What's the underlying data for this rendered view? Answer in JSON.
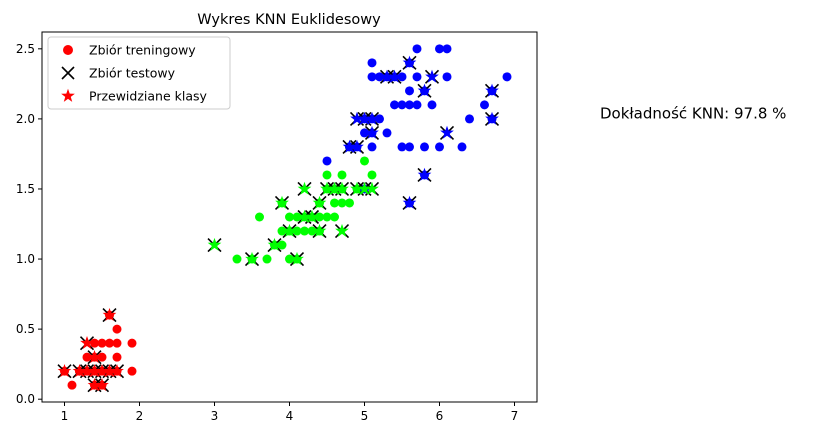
{
  "chart_data": {
    "type": "scatter",
    "title": "Wykres KNN Euklidesowy",
    "xlabel": "",
    "ylabel": "",
    "xlim": [
      0.7,
      7.3
    ],
    "ylim": [
      -0.02,
      2.62
    ],
    "xticks": [
      1,
      2,
      3,
      4,
      5,
      6,
      7
    ],
    "xtick_labels": [
      "1",
      "2",
      "3",
      "4",
      "5",
      "6",
      "7"
    ],
    "yticks": [
      0.0,
      0.5,
      1.0,
      1.5,
      2.0,
      2.5
    ],
    "ytick_labels": [
      "0.0",
      "0.5",
      "1.0",
      "1.5",
      "2.0",
      "2.5"
    ],
    "grid": false,
    "legend_position": "top-left",
    "legend": [
      {
        "label": "Zbiór treningowy",
        "marker": "circle",
        "color": "#ff0000"
      },
      {
        "label": "Zbiór testowy",
        "marker": "x",
        "color": "#000000"
      },
      {
        "label": "Przewidziane klasy",
        "marker": "star",
        "color": "#ff0000"
      }
    ],
    "class_colors": [
      "#ff0000",
      "#00ff00",
      "#0000ff"
    ],
    "training": [
      {
        "x": 1.1,
        "y": 0.1,
        "c": 0
      },
      {
        "x": 1.2,
        "y": 0.2,
        "c": 0
      },
      {
        "x": 1.3,
        "y": 0.2,
        "c": 0
      },
      {
        "x": 1.3,
        "y": 0.3,
        "c": 0
      },
      {
        "x": 1.4,
        "y": 0.2,
        "c": 0
      },
      {
        "x": 1.4,
        "y": 0.3,
        "c": 0
      },
      {
        "x": 1.4,
        "y": 0.1,
        "c": 0
      },
      {
        "x": 1.5,
        "y": 0.2,
        "c": 0
      },
      {
        "x": 1.5,
        "y": 0.3,
        "c": 0
      },
      {
        "x": 1.5,
        "y": 0.4,
        "c": 0
      },
      {
        "x": 1.5,
        "y": 0.1,
        "c": 0
      },
      {
        "x": 1.6,
        "y": 0.2,
        "c": 0
      },
      {
        "x": 1.6,
        "y": 0.4,
        "c": 0
      },
      {
        "x": 1.6,
        "y": 0.6,
        "c": 0
      },
      {
        "x": 1.7,
        "y": 0.2,
        "c": 0
      },
      {
        "x": 1.7,
        "y": 0.3,
        "c": 0
      },
      {
        "x": 1.7,
        "y": 0.4,
        "c": 0
      },
      {
        "x": 1.7,
        "y": 0.5,
        "c": 0
      },
      {
        "x": 1.9,
        "y": 0.2,
        "c": 0
      },
      {
        "x": 1.9,
        "y": 0.4,
        "c": 0
      },
      {
        "x": 1.2,
        "y": 0.2,
        "c": 0
      },
      {
        "x": 1.0,
        "y": 0.2,
        "c": 0
      },
      {
        "x": 1.4,
        "y": 0.4,
        "c": 0
      },
      {
        "x": 3.3,
        "y": 1.0,
        "c": 1
      },
      {
        "x": 3.5,
        "y": 1.0,
        "c": 1
      },
      {
        "x": 3.6,
        "y": 1.3,
        "c": 1
      },
      {
        "x": 3.7,
        "y": 1.0,
        "c": 1
      },
      {
        "x": 3.8,
        "y": 1.1,
        "c": 1
      },
      {
        "x": 3.9,
        "y": 1.1,
        "c": 1
      },
      {
        "x": 3.9,
        "y": 1.2,
        "c": 1
      },
      {
        "x": 3.9,
        "y": 1.4,
        "c": 1
      },
      {
        "x": 4.0,
        "y": 1.0,
        "c": 1
      },
      {
        "x": 4.0,
        "y": 1.2,
        "c": 1
      },
      {
        "x": 4.0,
        "y": 1.3,
        "c": 1
      },
      {
        "x": 4.1,
        "y": 1.0,
        "c": 1
      },
      {
        "x": 4.1,
        "y": 1.3,
        "c": 1
      },
      {
        "x": 4.2,
        "y": 1.2,
        "c": 1
      },
      {
        "x": 4.2,
        "y": 1.3,
        "c": 1
      },
      {
        "x": 4.3,
        "y": 1.3,
        "c": 1
      },
      {
        "x": 4.4,
        "y": 1.2,
        "c": 1
      },
      {
        "x": 4.4,
        "y": 1.3,
        "c": 1
      },
      {
        "x": 4.4,
        "y": 1.4,
        "c": 1
      },
      {
        "x": 4.5,
        "y": 1.3,
        "c": 1
      },
      {
        "x": 4.5,
        "y": 1.5,
        "c": 1
      },
      {
        "x": 4.5,
        "y": 1.6,
        "c": 1
      },
      {
        "x": 4.6,
        "y": 1.3,
        "c": 1
      },
      {
        "x": 4.6,
        "y": 1.4,
        "c": 1
      },
      {
        "x": 4.6,
        "y": 1.5,
        "c": 1
      },
      {
        "x": 4.7,
        "y": 1.4,
        "c": 1
      },
      {
        "x": 4.7,
        "y": 1.5,
        "c": 1
      },
      {
        "x": 4.7,
        "y": 1.6,
        "c": 1
      },
      {
        "x": 4.8,
        "y": 1.4,
        "c": 1
      },
      {
        "x": 4.8,
        "y": 1.8,
        "c": 1
      },
      {
        "x": 4.9,
        "y": 1.5,
        "c": 1
      },
      {
        "x": 5.0,
        "y": 1.7,
        "c": 1
      },
      {
        "x": 5.1,
        "y": 1.6,
        "c": 1
      },
      {
        "x": 4.1,
        "y": 1.2,
        "c": 1
      },
      {
        "x": 4.3,
        "y": 1.2,
        "c": 1
      },
      {
        "x": 4.5,
        "y": 1.7,
        "c": 2
      },
      {
        "x": 4.8,
        "y": 1.8,
        "c": 2
      },
      {
        "x": 4.9,
        "y": 1.8,
        "c": 2
      },
      {
        "x": 5.0,
        "y": 1.5,
        "c": 2
      },
      {
        "x": 5.0,
        "y": 1.9,
        "c": 2
      },
      {
        "x": 5.0,
        "y": 2.0,
        "c": 2
      },
      {
        "x": 5.1,
        "y": 1.8,
        "c": 2
      },
      {
        "x": 5.1,
        "y": 1.9,
        "c": 2
      },
      {
        "x": 5.1,
        "y": 2.0,
        "c": 2
      },
      {
        "x": 5.1,
        "y": 2.3,
        "c": 2
      },
      {
        "x": 5.1,
        "y": 2.4,
        "c": 2
      },
      {
        "x": 5.2,
        "y": 2.0,
        "c": 2
      },
      {
        "x": 5.2,
        "y": 2.3,
        "c": 2
      },
      {
        "x": 5.3,
        "y": 1.9,
        "c": 2
      },
      {
        "x": 5.3,
        "y": 2.3,
        "c": 2
      },
      {
        "x": 5.4,
        "y": 2.1,
        "c": 2
      },
      {
        "x": 5.4,
        "y": 2.3,
        "c": 2
      },
      {
        "x": 5.5,
        "y": 1.8,
        "c": 2
      },
      {
        "x": 5.5,
        "y": 2.1,
        "c": 2
      },
      {
        "x": 5.6,
        "y": 1.8,
        "c": 2
      },
      {
        "x": 5.6,
        "y": 2.1,
        "c": 2
      },
      {
        "x": 5.6,
        "y": 2.2,
        "c": 2
      },
      {
        "x": 5.6,
        "y": 2.4,
        "c": 2
      },
      {
        "x": 5.7,
        "y": 2.1,
        "c": 2
      },
      {
        "x": 5.7,
        "y": 2.3,
        "c": 2
      },
      {
        "x": 5.7,
        "y": 2.5,
        "c": 2
      },
      {
        "x": 5.8,
        "y": 1.8,
        "c": 2
      },
      {
        "x": 5.8,
        "y": 2.2,
        "c": 2
      },
      {
        "x": 5.9,
        "y": 2.1,
        "c": 2
      },
      {
        "x": 6.0,
        "y": 1.8,
        "c": 2
      },
      {
        "x": 6.0,
        "y": 2.5,
        "c": 2
      },
      {
        "x": 6.1,
        "y": 2.3,
        "c": 2
      },
      {
        "x": 6.1,
        "y": 2.5,
        "c": 2
      },
      {
        "x": 6.3,
        "y": 1.8,
        "c": 2
      },
      {
        "x": 6.4,
        "y": 2.0,
        "c": 2
      },
      {
        "x": 6.6,
        "y": 2.1,
        "c": 2
      },
      {
        "x": 6.7,
        "y": 2.0,
        "c": 2
      },
      {
        "x": 6.7,
        "y": 2.2,
        "c": 2
      },
      {
        "x": 6.9,
        "y": 2.3,
        "c": 2
      },
      {
        "x": 5.8,
        "y": 1.6,
        "c": 2
      },
      {
        "x": 5.6,
        "y": 1.4,
        "c": 2
      },
      {
        "x": 5.5,
        "y": 2.3,
        "c": 2
      }
    ],
    "test": [
      {
        "x": 1.0,
        "y": 0.2,
        "pred": 0
      },
      {
        "x": 1.2,
        "y": 0.2,
        "pred": 0
      },
      {
        "x": 1.3,
        "y": 0.4,
        "pred": 0
      },
      {
        "x": 1.3,
        "y": 0.2,
        "pred": 0
      },
      {
        "x": 1.4,
        "y": 0.2,
        "pred": 0
      },
      {
        "x": 1.4,
        "y": 0.1,
        "pred": 0
      },
      {
        "x": 1.5,
        "y": 0.2,
        "pred": 0
      },
      {
        "x": 1.5,
        "y": 0.1,
        "pred": 0
      },
      {
        "x": 1.6,
        "y": 0.2,
        "pred": 0
      },
      {
        "x": 1.6,
        "y": 0.6,
        "pred": 0
      },
      {
        "x": 1.7,
        "y": 0.2,
        "pred": 0
      },
      {
        "x": 1.4,
        "y": 0.3,
        "pred": 0
      },
      {
        "x": 3.0,
        "y": 1.1,
        "pred": 1
      },
      {
        "x": 3.5,
        "y": 1.0,
        "pred": 1
      },
      {
        "x": 3.8,
        "y": 1.1,
        "pred": 1
      },
      {
        "x": 3.9,
        "y": 1.4,
        "pred": 1
      },
      {
        "x": 4.0,
        "y": 1.2,
        "pred": 1
      },
      {
        "x": 4.1,
        "y": 1.0,
        "pred": 1
      },
      {
        "x": 4.2,
        "y": 1.3,
        "pred": 1
      },
      {
        "x": 4.2,
        "y": 1.5,
        "pred": 1
      },
      {
        "x": 4.3,
        "y": 1.3,
        "pred": 1
      },
      {
        "x": 4.4,
        "y": 1.2,
        "pred": 1
      },
      {
        "x": 4.4,
        "y": 1.4,
        "pred": 1
      },
      {
        "x": 4.5,
        "y": 1.5,
        "pred": 1
      },
      {
        "x": 4.6,
        "y": 1.5,
        "pred": 1
      },
      {
        "x": 4.7,
        "y": 1.2,
        "pred": 1
      },
      {
        "x": 4.7,
        "y": 1.5,
        "pred": 1
      },
      {
        "x": 4.9,
        "y": 1.5,
        "pred": 1
      },
      {
        "x": 5.0,
        "y": 1.5,
        "pred": 1
      },
      {
        "x": 5.1,
        "y": 1.5,
        "pred": 1
      },
      {
        "x": 4.8,
        "y": 1.8,
        "pred": 2
      },
      {
        "x": 4.9,
        "y": 1.8,
        "pred": 2
      },
      {
        "x": 4.9,
        "y": 2.0,
        "pred": 2
      },
      {
        "x": 5.0,
        "y": 2.0,
        "pred": 2
      },
      {
        "x": 5.1,
        "y": 1.9,
        "pred": 2
      },
      {
        "x": 5.1,
        "y": 2.0,
        "pred": 2
      },
      {
        "x": 5.3,
        "y": 2.3,
        "pred": 2
      },
      {
        "x": 5.4,
        "y": 2.3,
        "pred": 2
      },
      {
        "x": 5.6,
        "y": 2.4,
        "pred": 2
      },
      {
        "x": 5.6,
        "y": 1.4,
        "pred": 2
      },
      {
        "x": 5.8,
        "y": 2.2,
        "pred": 2
      },
      {
        "x": 5.8,
        "y": 1.6,
        "pred": 2
      },
      {
        "x": 5.9,
        "y": 2.3,
        "pred": 2
      },
      {
        "x": 6.1,
        "y": 1.9,
        "pred": 2
      },
      {
        "x": 6.7,
        "y": 2.2,
        "pred": 2
      },
      {
        "x": 6.7,
        "y": 2.0,
        "pred": 2
      }
    ]
  },
  "annotation": {
    "accuracy_text": "Dokładność KNN: 97.8 %"
  }
}
